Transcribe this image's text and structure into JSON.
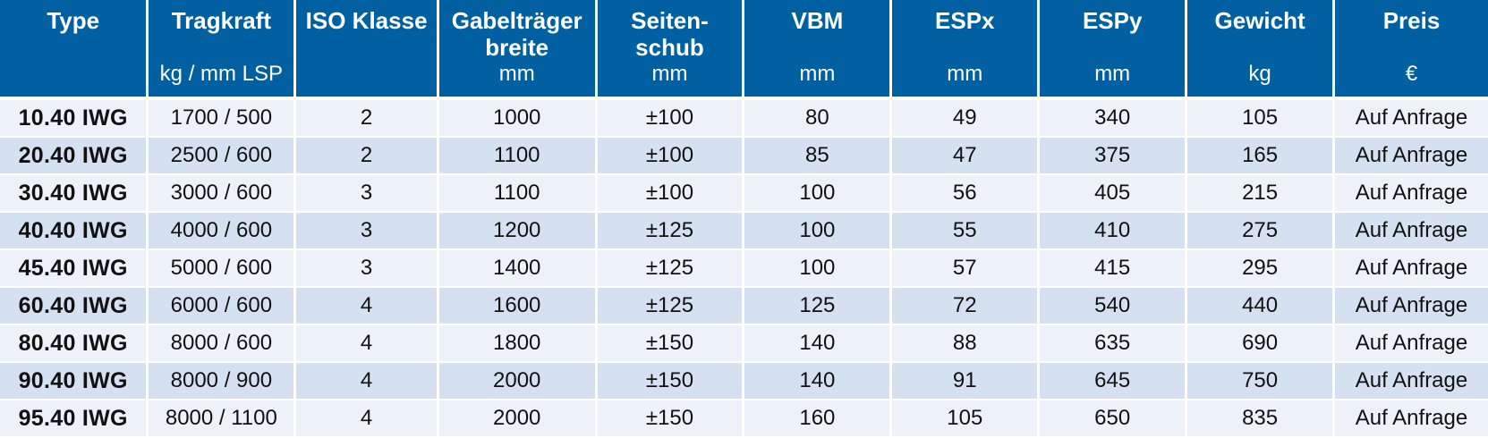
{
  "table": {
    "columns": [
      {
        "label": "Type",
        "unit": ""
      },
      {
        "label": "Tragkraft",
        "unit": "kg / mm LSP"
      },
      {
        "label": "ISO Klasse",
        "unit": ""
      },
      {
        "label": "Gabelträger breite",
        "unit": "mm"
      },
      {
        "label": "Seiten- schub",
        "unit": "mm"
      },
      {
        "label": "VBM",
        "unit": "mm"
      },
      {
        "label": "ESPx",
        "unit": "mm"
      },
      {
        "label": "ESPy",
        "unit": "mm"
      },
      {
        "label": "Gewicht",
        "unit": "kg"
      },
      {
        "label": "Preis",
        "unit": "€"
      }
    ],
    "rows": [
      [
        "10.40 IWG",
        "1700 / 500",
        "2",
        "1000",
        "±100",
        "80",
        "49",
        "340",
        "105",
        "Auf Anfrage"
      ],
      [
        "20.40 IWG",
        "2500 / 600",
        "2",
        "1100",
        "±100",
        "85",
        "47",
        "375",
        "165",
        "Auf Anfrage"
      ],
      [
        "30.40 IWG",
        "3000 / 600",
        "3",
        "1100",
        "±100",
        "100",
        "56",
        "405",
        "215",
        "Auf Anfrage"
      ],
      [
        "40.40 IWG",
        "4000 / 600",
        "3",
        "1200",
        "±125",
        "100",
        "55",
        "410",
        "275",
        "Auf Anfrage"
      ],
      [
        "45.40 IWG",
        "5000 / 600",
        "3",
        "1400",
        "±125",
        "100",
        "57",
        "415",
        "295",
        "Auf Anfrage"
      ],
      [
        "60.40 IWG",
        "6000 / 600",
        "4",
        "1600",
        "±125",
        "125",
        "72",
        "540",
        "440",
        "Auf Anfrage"
      ],
      [
        "80.40 IWG",
        "8000 / 600",
        "4",
        "1800",
        "±150",
        "140",
        "88",
        "635",
        "690",
        "Auf Anfrage"
      ],
      [
        "90.40 IWG",
        "8000 / 900",
        "4",
        "2000",
        "±150",
        "140",
        "91",
        "645",
        "750",
        "Auf Anfrage"
      ],
      [
        "95.40 IWG",
        "8000 / 1100",
        "4",
        "2000",
        "±150",
        "160",
        "105",
        "650",
        "835",
        "Auf Anfrage"
      ]
    ]
  },
  "colors": {
    "header_bg": "#0060a2",
    "row_light": "#edf2f9",
    "row_dark": "#d5e1f1"
  }
}
